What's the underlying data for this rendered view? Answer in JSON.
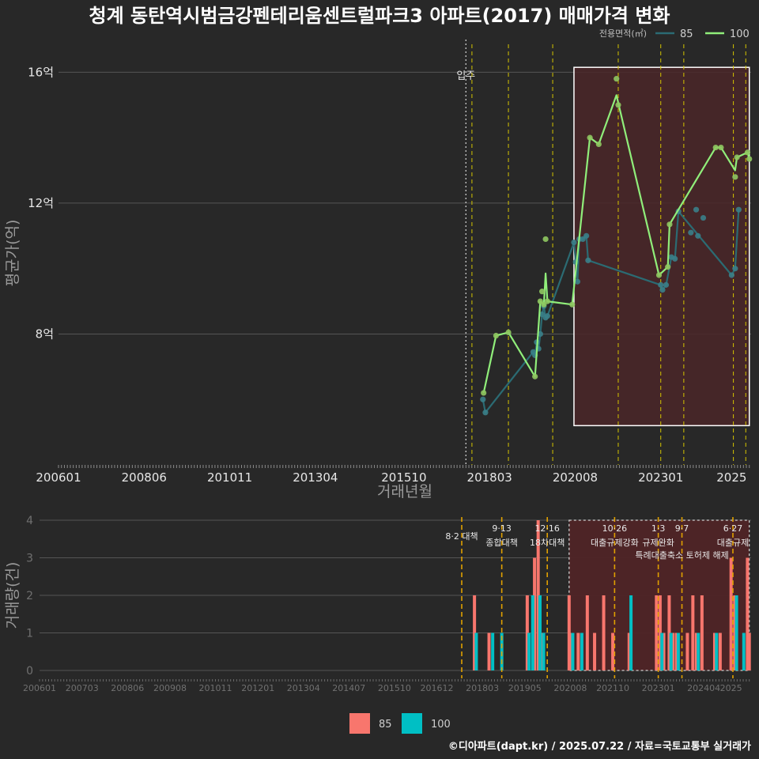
{
  "title": "청계 동탄역시범금강펜테리움센트럴파크3 아파트(2017) 매매가격 변화",
  "caption": "©디아파트(dapt.kr) / 2025.07.22 / 자료=국토교통부 실거래가",
  "colors": {
    "background": "#282828",
    "grid": "#555555",
    "s85_line": "#2b6b73",
    "s100_line": "#90ee7a",
    "bar85": "#f8766d",
    "bar100": "#00bfc4",
    "policy_line": "#d4c400",
    "policy_line_bottom": "#e0a000",
    "highlight_fill": "#4a2628"
  },
  "chart_data": [
    {
      "type": "line",
      "title": "청계 동탄역시범금강펜테리움센트럴파크3 아파트(2017) 매매가격 변화",
      "xlabel": "거래년월",
      "ylabel": "평균가(억)",
      "x_ticks": [
        "200601",
        "200806",
        "201011",
        "201304",
        "201510",
        "201803",
        "202008",
        "202301",
        "2025"
      ],
      "xlim": [
        2006.0,
        2025.55
      ],
      "ylim": [
        4.0,
        17.0
      ],
      "y_ticks": [
        8,
        12,
        16
      ],
      "y_tick_labels": [
        "8억",
        "12억",
        "16억"
      ],
      "legend_title": "전용면적(㎡)",
      "legend": [
        "85",
        "100"
      ],
      "legend_placement": "top-right",
      "move_in_label": "입주",
      "move_in_x": 2017.5,
      "policy_x": [
        2017.67,
        2018.7,
        2019.95,
        2021.8,
        2023.0,
        2023.65,
        2025.05,
        2025.4
      ],
      "highlight_range": {
        "x": [
          2020.55,
          2025.5
        ],
        "y": [
          5.2,
          16.15
        ]
      },
      "series": [
        {
          "name": "85",
          "points": [
            [
              2017.98,
              6.0
            ],
            [
              2018.05,
              5.6
            ],
            [
              2019.4,
              7.45
            ],
            [
              2019.45,
              7.35
            ],
            [
              2019.5,
              7.75
            ],
            [
              2019.55,
              7.55
            ],
            [
              2019.6,
              8.0
            ],
            [
              2019.65,
              8.6
            ],
            [
              2019.7,
              8.85
            ],
            [
              2019.75,
              8.5
            ],
            [
              2019.8,
              8.55
            ],
            [
              2020.55,
              10.8
            ],
            [
              2020.6,
              10.2
            ],
            [
              2020.65,
              9.6
            ],
            [
              2020.7,
              10.9
            ],
            [
              2020.8,
              10.9
            ],
            [
              2020.9,
              11.0
            ],
            [
              2020.95,
              10.25
            ],
            [
              2023.0,
              9.5
            ],
            [
              2023.05,
              9.35
            ],
            [
              2023.15,
              9.5
            ],
            [
              2023.3,
              10.35
            ],
            [
              2023.4,
              10.3
            ],
            [
              2023.5,
              11.75
            ],
            [
              2023.85,
              11.1
            ],
            [
              2024.0,
              11.8
            ],
            [
              2024.05,
              11.0
            ],
            [
              2024.2,
              11.55
            ],
            [
              2025.0,
              9.8
            ],
            [
              2025.1,
              10.0
            ],
            [
              2025.2,
              11.8
            ]
          ],
          "line": [
            [
              2017.98,
              6.0
            ],
            [
              2018.05,
              5.6
            ],
            [
              2019.4,
              7.45
            ],
            [
              2019.45,
              7.35
            ],
            [
              2019.5,
              7.75
            ],
            [
              2019.55,
              7.55
            ],
            [
              2019.6,
              8.0
            ],
            [
              2019.65,
              8.6
            ],
            [
              2019.7,
              8.85
            ],
            [
              2019.75,
              8.5
            ],
            [
              2019.8,
              8.55
            ],
            [
              2020.55,
              10.8
            ],
            [
              2020.6,
              10.2
            ],
            [
              2020.65,
              9.6
            ],
            [
              2020.7,
              10.9
            ],
            [
              2020.8,
              10.9
            ],
            [
              2020.9,
              11.0
            ],
            [
              2020.95,
              10.25
            ],
            [
              2023.0,
              9.5
            ],
            [
              2023.05,
              9.35
            ],
            [
              2023.15,
              9.5
            ],
            [
              2023.3,
              10.35
            ],
            [
              2023.4,
              10.3
            ],
            [
              2023.5,
              11.75
            ],
            [
              2025.0,
              9.8
            ],
            [
              2025.1,
              10.0
            ],
            [
              2025.2,
              11.8
            ]
          ]
        },
        {
          "name": "100",
          "points": [
            [
              2018.0,
              6.2
            ],
            [
              2018.35,
              7.95
            ],
            [
              2018.7,
              8.05
            ],
            [
              2019.45,
              6.7
            ],
            [
              2019.6,
              9.0
            ],
            [
              2019.65,
              9.3
            ],
            [
              2019.7,
              8.9
            ],
            [
              2019.75,
              10.9
            ],
            [
              2019.8,
              9.0
            ],
            [
              2020.5,
              8.9
            ],
            [
              2021.0,
              14.0
            ],
            [
              2021.25,
              13.8
            ],
            [
              2021.75,
              15.8
            ],
            [
              2021.8,
              15.0
            ],
            [
              2022.95,
              9.8
            ],
            [
              2023.2,
              10.05
            ],
            [
              2023.25,
              11.35
            ],
            [
              2024.55,
              13.7
            ],
            [
              2024.7,
              13.7
            ],
            [
              2025.1,
              12.8
            ],
            [
              2025.15,
              13.4
            ],
            [
              2025.45,
              13.55
            ],
            [
              2025.5,
              13.35
            ]
          ],
          "line": [
            [
              2018.0,
              6.2
            ],
            [
              2018.35,
              7.95
            ],
            [
              2018.7,
              8.05
            ],
            [
              2019.45,
              6.7
            ],
            [
              2019.6,
              9.0
            ],
            [
              2019.7,
              8.9
            ],
            [
              2019.75,
              9.85
            ],
            [
              2019.8,
              9.0
            ],
            [
              2020.5,
              8.9
            ],
            [
              2021.0,
              14.0
            ],
            [
              2021.25,
              13.8
            ],
            [
              2021.75,
              15.3
            ],
            [
              2022.95,
              9.8
            ],
            [
              2023.2,
              10.05
            ],
            [
              2023.25,
              11.35
            ],
            [
              2024.55,
              13.7
            ],
            [
              2024.7,
              13.7
            ],
            [
              2025.1,
              13.0
            ],
            [
              2025.15,
              13.4
            ],
            [
              2025.45,
              13.55
            ],
            [
              2025.5,
              13.35
            ]
          ]
        }
      ]
    },
    {
      "type": "bar",
      "xlabel": "",
      "ylabel": "거래량(건)",
      "x_ticks": [
        "200601",
        "200703",
        "200806",
        "200908",
        "201011",
        "201201",
        "201304",
        "201407",
        "201510",
        "201612",
        "201803",
        "201905",
        "202008",
        "202110",
        "202301",
        "202404",
        "2025"
      ],
      "xlim": [
        2006.0,
        2025.55
      ],
      "ylim": [
        0,
        4
      ],
      "y_ticks": [
        0,
        1,
        2,
        3,
        4
      ],
      "legend": [
        "85",
        "100"
      ],
      "legend_placement": "bottom",
      "highlight_range": {
        "x": [
          2020.55,
          2025.5
        ],
        "y": [
          0,
          4
        ]
      },
      "policies": [
        {
          "x": 2017.6,
          "label": "8·2 대책",
          "label2": ""
        },
        {
          "x": 2018.7,
          "label": "9·13",
          "label2": "종합대책"
        },
        {
          "x": 2019.95,
          "label": "12·16",
          "label2": "18차대책"
        },
        {
          "x": 2021.8,
          "label": "10·26",
          "label2": "대출규제강화"
        },
        {
          "x": 2023.0,
          "label": "1·3",
          "label2": "규제완화"
        },
        {
          "x": 2023.65,
          "label": "9·7",
          "label2": "특례대출축소 토허제 해제"
        },
        {
          "x": 2025.05,
          "label": "6·27",
          "label2": "대출규제"
        }
      ],
      "series": [
        {
          "name": "85",
          "x": [
            2017.95,
            2018.35,
            2019.4,
            2019.6,
            2019.7,
            2019.8,
            2020.55,
            2020.6,
            2020.8,
            2021.05,
            2021.25,
            2021.5,
            2021.75,
            2022.2,
            2022.95,
            2023.05,
            2023.15,
            2023.3,
            2023.4,
            2023.5,
            2023.8,
            2023.95,
            2024.05,
            2024.2,
            2024.55,
            2024.7,
            2025.0,
            2025.1,
            2025.45,
            2025.5
          ],
          "values": [
            2,
            1,
            2,
            3,
            4,
            1,
            2,
            1,
            1,
            2,
            1,
            2,
            1,
            1,
            2,
            2,
            1,
            2,
            1,
            1,
            1,
            2,
            1,
            2,
            1,
            1,
            3,
            2,
            3,
            1
          ]
        },
        {
          "name": "100",
          "x": [
            2018.0,
            2018.45,
            2018.7,
            2019.45,
            2019.55,
            2019.75,
            2019.85,
            2020.65,
            2020.9,
            2022.25,
            2023.1,
            2023.35,
            2023.55,
            2024.1,
            2024.6,
            2025.15,
            2025.35
          ],
          "values": [
            1,
            1,
            1,
            1,
            2,
            2,
            1,
            1,
            1,
            2,
            1,
            1,
            1,
            1,
            1,
            2,
            1
          ]
        }
      ]
    }
  ]
}
